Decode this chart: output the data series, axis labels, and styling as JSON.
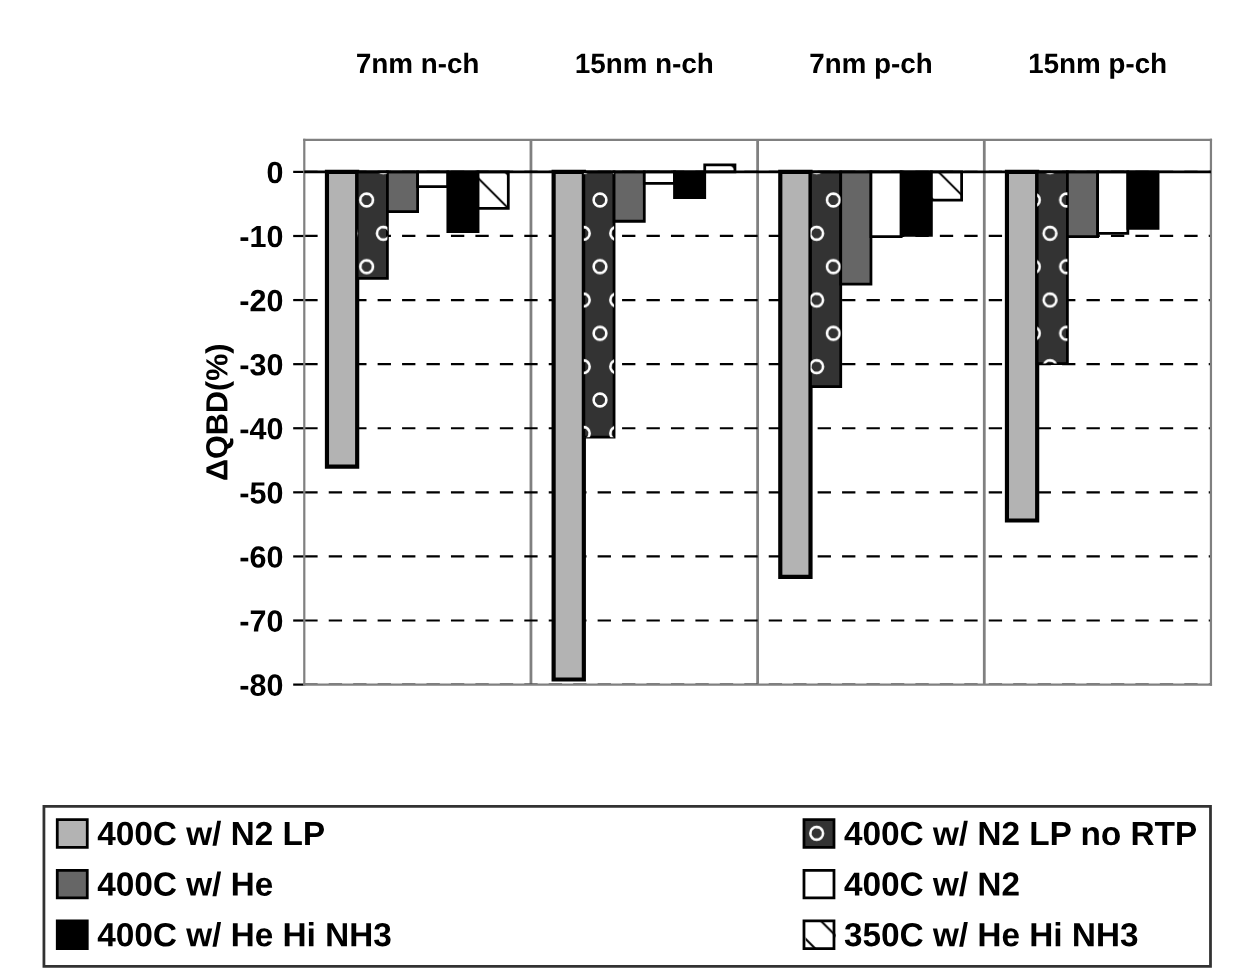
{
  "chart_data": {
    "type": "bar",
    "ylabel": "ΔQBD(%)",
    "categories": [
      "7nm n-ch",
      "15nm n-ch",
      "7nm p-ch",
      "15nm p-ch"
    ],
    "series": [
      {
        "name": "400C w/ N2 LP",
        "color": "#b3b3b3",
        "values": [
          -46,
          -79.2,
          -63.2,
          -54.4
        ]
      },
      {
        "name": "400C w/ N2 LP no RTP",
        "color": "#333333",
        "values": [
          -16.6,
          -41.4,
          -33.5,
          -29.9
        ]
      },
      {
        "name": "400C w/ He",
        "color": "#666666",
        "values": [
          -6.2,
          -7.7,
          -17.5,
          -10.1
        ]
      },
      {
        "name": "400C w/ N2",
        "color": "#ffffff",
        "values": [
          -2.3,
          -1.8,
          -10.1,
          -9.6
        ]
      },
      {
        "name": "400C w/ He Hi NH3",
        "color": "#000000",
        "values": [
          -9.3,
          -4,
          -9.9,
          -8.8
        ]
      },
      {
        "name": "350C w/ He Hi NH3",
        "color": "#ffffff",
        "values": [
          -5.7,
          1.1,
          -4.4,
          null
        ]
      }
    ],
    "ylim": [
      -80,
      5
    ],
    "yticks": [
      -80,
      -70,
      -60,
      -50,
      -40,
      -30,
      -20,
      -10,
      0
    ],
    "grid": "y",
    "line_style": "dashed",
    "legend": "bottom"
  }
}
